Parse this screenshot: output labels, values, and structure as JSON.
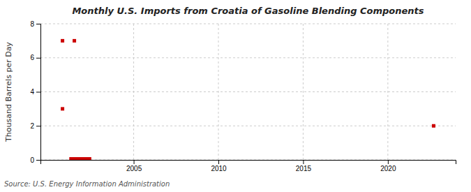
{
  "chart_data": {
    "type": "scatter",
    "title": "Monthly U.S. Imports from Croatia of Gasoline Blending Components",
    "ylabel": "Thousand Barrels per Day",
    "annotations": [
      "Source: U.S. Energy Information Administration"
    ],
    "series": [
      {
        "type": "scatter",
        "marker": "square",
        "color": "#cc0000",
        "x": [
          2000.8,
          2001.5,
          2000.8,
          2022.7
        ],
        "values": [
          7.0,
          7.0,
          3.0,
          2.0
        ]
      },
      {
        "type": "line",
        "color": "#cc0000",
        "x": [
          2001.2,
          2002.5
        ],
        "values": [
          0.08,
          0.08
        ]
      }
    ],
    "xlim": [
      1999.5,
      2024.0
    ],
    "xticks": [
      2005,
      2010,
      2015,
      2020
    ],
    "ylim": [
      0,
      8
    ],
    "yticks": [
      0,
      2,
      4,
      6,
      8
    ],
    "grid": true
  }
}
